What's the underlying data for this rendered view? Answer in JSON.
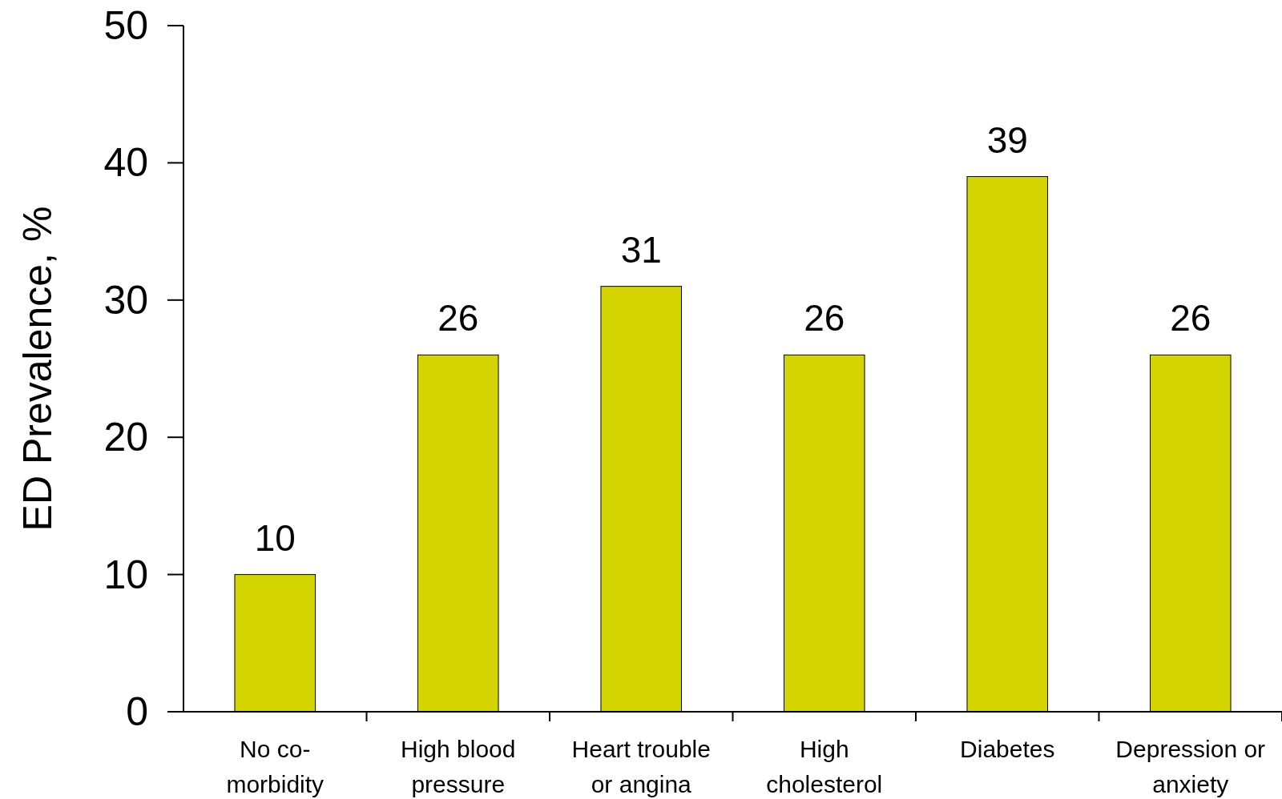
{
  "chart_data": {
    "type": "bar",
    "ylabel": "ED Prevalence, %",
    "categories": [
      "No co-morbidity",
      "High blood pressure",
      "Heart trouble or angina",
      "High cholesterol",
      "Diabetes",
      "Depression or anxiety"
    ],
    "values": [
      10,
      26,
      31,
      26,
      39,
      26
    ],
    "color": "#d4d400",
    "data_labels": true,
    "ylim": [
      0,
      50
    ],
    "yticks": [
      0,
      10,
      20,
      30,
      40,
      50
    ],
    "grid": false
  }
}
